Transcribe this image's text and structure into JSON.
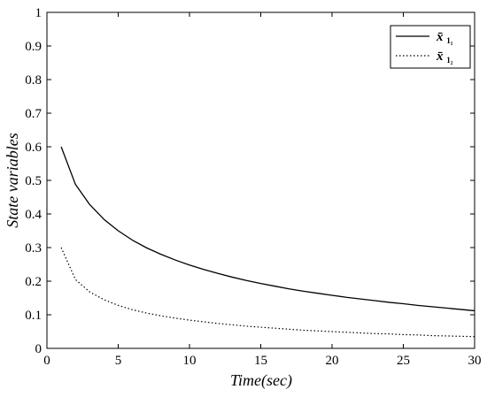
{
  "chart_data": {
    "type": "line",
    "title": "",
    "xlabel": "Time(sec)",
    "ylabel": "State variables",
    "xlim": [
      0,
      30
    ],
    "ylim": [
      0,
      1
    ],
    "x_ticks": [
      0,
      5,
      10,
      15,
      20,
      25,
      30
    ],
    "y_ticks": [
      0,
      0.1,
      0.2,
      0.3,
      0.4,
      0.5,
      0.6,
      0.7,
      0.8,
      0.9,
      1
    ],
    "grid": false,
    "legend_position": "top-right",
    "series": [
      {
        "name": "x̄₁₁",
        "name_base": "x̄",
        "name_subscript": "1₁",
        "style": "solid",
        "color": "#000000",
        "x": [
          1,
          2,
          3,
          4,
          5,
          6,
          7,
          8,
          9,
          10,
          11,
          12,
          13,
          14,
          15,
          16,
          17,
          18,
          19,
          20,
          21,
          22,
          23,
          24,
          25,
          26,
          27,
          28,
          29,
          30
        ],
        "y": [
          0.6,
          0.488,
          0.428,
          0.384,
          0.35,
          0.322,
          0.299,
          0.28,
          0.263,
          0.248,
          0.235,
          0.223,
          0.212,
          0.202,
          0.193,
          0.185,
          0.177,
          0.17,
          0.164,
          0.158,
          0.152,
          0.147,
          0.142,
          0.137,
          0.133,
          0.128,
          0.124,
          0.12,
          0.116,
          0.112
        ]
      },
      {
        "name": "x̄₁₂",
        "name_base": "x̄",
        "name_subscript": "1₂",
        "style": "dotted",
        "color": "#000000",
        "x": [
          1,
          2,
          3,
          4,
          5,
          6,
          7,
          8,
          9,
          10,
          11,
          12,
          13,
          14,
          15,
          16,
          17,
          18,
          19,
          20,
          21,
          22,
          23,
          24,
          25,
          26,
          27,
          28,
          29,
          30
        ],
        "y": [
          0.3,
          0.205,
          0.168,
          0.145,
          0.128,
          0.115,
          0.105,
          0.097,
          0.09,
          0.084,
          0.079,
          0.074,
          0.07,
          0.066,
          0.063,
          0.06,
          0.057,
          0.054,
          0.052,
          0.05,
          0.048,
          0.046,
          0.044,
          0.043,
          0.041,
          0.04,
          0.038,
          0.037,
          0.036,
          0.035
        ]
      }
    ]
  }
}
